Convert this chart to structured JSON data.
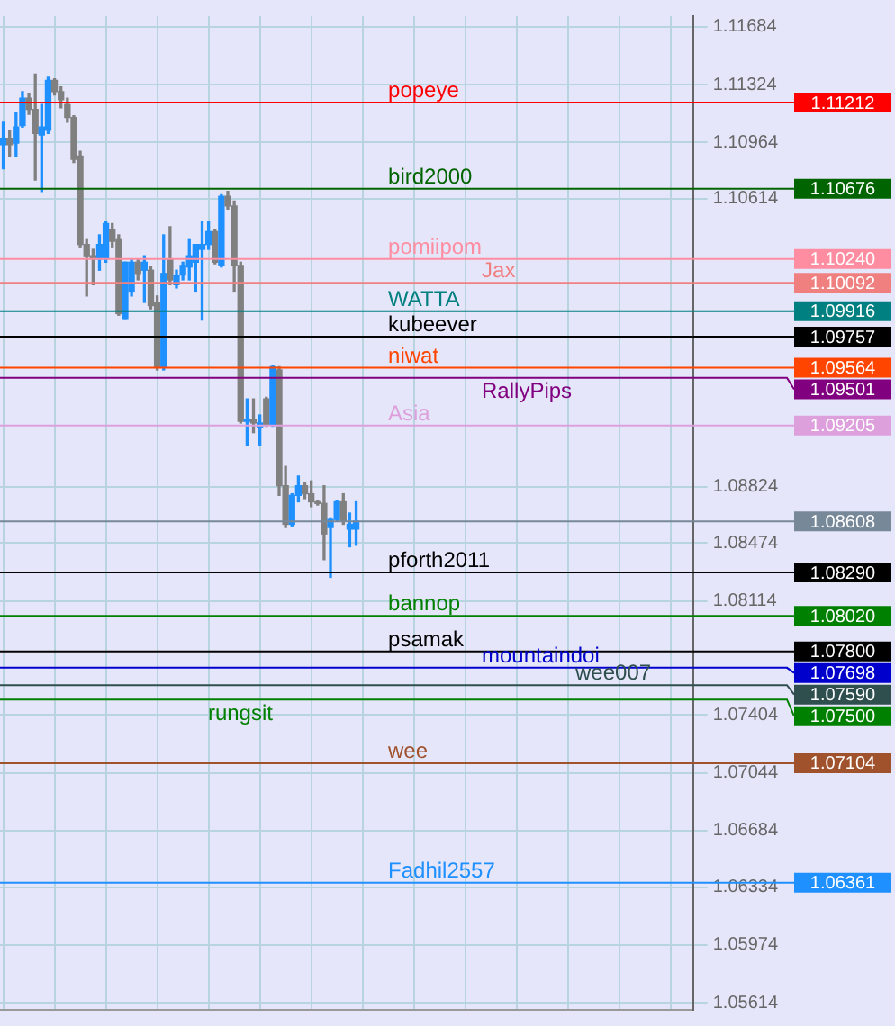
{
  "chart_data": {
    "type": "candlestick",
    "categories": [
      null,
      null,
      null,
      null,
      null,
      null,
      null,
      null,
      null,
      null,
      null,
      null,
      null,
      null,
      null,
      null,
      null,
      null,
      null,
      null,
      null,
      null,
      null,
      null,
      null,
      null,
      null,
      null,
      null,
      null,
      null,
      null,
      null,
      null,
      null,
      null,
      null,
      null,
      null,
      null,
      null,
      null,
      null,
      null,
      null,
      null,
      null,
      null,
      null,
      null,
      null,
      null,
      null,
      null,
      null,
      null,
      null,
      null,
      null,
      null,
      null,
      null,
      null,
      null,
      null,
      null,
      null,
      null,
      null,
      null,
      null,
      null,
      null,
      null,
      null,
      null,
      null,
      null,
      null,
      null,
      null,
      null,
      null,
      null,
      null,
      null,
      null,
      null,
      null,
      null,
      null,
      null,
      null,
      null,
      null,
      null,
      null,
      null,
      null,
      null,
      null,
      null,
      null,
      null,
      null,
      null,
      null,
      null
    ],
    "annotations": [
      "1.11212",
      "1.10676",
      "1.10240",
      "1.10092",
      "1.09916",
      "1.09757",
      "1.09564",
      "1.09501",
      "1.09205",
      "1.08608",
      "1.08290",
      "1.08020",
      "1.07800",
      "1.07698",
      "1.07590",
      "1.07500",
      "1.07104",
      "1.06361"
    ],
    "ohlc": [
      [
        1.1095,
        1.1109,
        1.108,
        1.1099
      ],
      [
        1.1099,
        1.1104,
        1.1088,
        1.1095
      ],
      [
        1.1096,
        1.1115,
        1.1088,
        1.1106
      ],
      [
        1.1107,
        1.1128,
        1.1106,
        1.1124
      ],
      [
        1.1124,
        1.1127,
        1.1114,
        1.1117
      ],
      [
        1.1117,
        1.1139,
        1.1073,
        1.1102
      ],
      [
        1.1101,
        1.112,
        1.1066,
        1.1106
      ],
      [
        1.1104,
        1.1137,
        1.1102,
        1.1135
      ],
      [
        1.1135,
        1.1136,
        1.1126,
        1.1128
      ],
      [
        1.1128,
        1.1131,
        1.1118,
        1.1123
      ],
      [
        1.112,
        1.1124,
        1.1109,
        1.1112
      ],
      [
        1.1112,
        1.1113,
        1.1084,
        1.1086
      ],
      [
        1.1088,
        1.1091,
        1.1031,
        1.1033
      ],
      [
        1.1033,
        1.1036,
        1.1001,
        1.1026
      ],
      [
        1.1026,
        1.103,
        1.1008,
        1.1024
      ],
      [
        1.1024,
        1.1039,
        1.1017,
        1.1033
      ],
      [
        1.1024,
        1.1047,
        1.1022,
        1.1046
      ],
      [
        1.1042,
        1.1046,
        1.1031,
        1.1035
      ],
      [
        1.1036,
        1.1039,
        1.0989,
        1.099
      ],
      [
        1.0987,
        1.1022,
        1.0987,
        1.1022
      ],
      [
        1.1004,
        1.1024,
        1.1001,
        1.1022
      ],
      [
        1.1022,
        1.1024,
        1.1011,
        1.1015
      ],
      [
        1.1017,
        1.1026,
        1.0997,
        1.1022
      ],
      [
        1.1017,
        1.1019,
        1.0993,
        1.0995
      ],
      [
        1.0997,
        1.1001,
        1.0955,
        1.0957
      ],
      [
        1.0957,
        1.1039,
        1.0955,
        1.1015
      ],
      [
        1.1024,
        1.1044,
        1.1008,
        1.1011
      ],
      [
        1.1008,
        1.1017,
        1.1006,
        1.1014
      ],
      [
        1.1014,
        1.1022,
        1.1011,
        1.102
      ],
      [
        1.1019,
        1.1036,
        1.1011,
        1.1026
      ],
      [
        1.1022,
        1.1033,
        1.1004,
        1.1033
      ],
      [
        1.103,
        1.1047,
        1.0986,
        1.1033
      ],
      [
        1.1033,
        1.1047,
        1.103,
        1.1041
      ],
      [
        1.1041,
        1.1042,
        1.1021,
        1.1022
      ],
      [
        1.102,
        1.1064,
        1.1019,
        1.1063
      ],
      [
        1.1063,
        1.1066,
        1.1055,
        1.1057
      ],
      [
        1.1057,
        1.106,
        1.1004,
        1.102
      ],
      [
        1.102,
        1.1022,
        1.0922,
        1.0923
      ],
      [
        1.0923,
        1.0937,
        1.0908,
        1.0924
      ],
      [
        1.0924,
        1.0937,
        1.0916,
        1.0922
      ],
      [
        1.0919,
        1.0927,
        1.0908,
        1.0922
      ],
      [
        1.0937,
        1.0938,
        1.092,
        1.0921
      ],
      [
        1.0921,
        1.0958,
        1.092,
        1.0957
      ],
      [
        1.0955,
        1.0957,
        1.0877,
        1.0883
      ],
      [
        1.0883,
        1.0895,
        1.0857,
        1.0859
      ],
      [
        1.0859,
        1.0878,
        1.0858,
        1.0877
      ],
      [
        1.0877,
        1.0889,
        1.0873,
        1.0883
      ],
      [
        1.0883,
        1.0885,
        1.0875,
        1.0878
      ],
      [
        1.0878,
        1.0886,
        1.087,
        1.0873
      ],
      [
        1.0873,
        1.0874,
        1.0871,
        1.0872
      ],
      [
        1.0872,
        1.0883,
        1.0837,
        1.0853
      ],
      [
        1.0857,
        1.0863,
        1.0826,
        1.0862
      ],
      [
        1.0862,
        1.0874,
        1.0861,
        1.0873
      ],
      [
        1.0873,
        1.0878,
        1.0859,
        1.0861
      ],
      [
        1.0856,
        1.0866,
        1.0845,
        1.0859
      ],
      [
        1.0856,
        1.0873,
        1.0846,
        1.0861
      ],
      null,
      null,
      null,
      null,
      null,
      null,
      null,
      null,
      null,
      null,
      null,
      null,
      null,
      null,
      null,
      null,
      null,
      null,
      null,
      null,
      null,
      null,
      null,
      null,
      null,
      null,
      null,
      null,
      null,
      null,
      null,
      null,
      null,
      null,
      null,
      null,
      null,
      null,
      null,
      null,
      null,
      null,
      null,
      null,
      null,
      null,
      null,
      null,
      null,
      null,
      null,
      null
    ],
    "colors": [
      "#1e90ff",
      "#808080",
      "#1e90ff",
      "#1e90ff",
      "#808080",
      "#808080",
      "#1e90ff",
      "#1e90ff",
      "#808080",
      "#808080",
      "#808080",
      "#808080",
      "#808080",
      "#808080",
      "#808080",
      "#1e90ff",
      "#1e90ff",
      "#808080",
      "#808080",
      "#1e90ff",
      "#1e90ff",
      "#808080",
      "#1e90ff",
      "#808080",
      "#808080",
      "#1e90ff",
      "#808080",
      "#1e90ff",
      "#1e90ff",
      "#1e90ff",
      "#1e90ff",
      "#1e90ff",
      "#1e90ff",
      "#808080",
      "#1e90ff",
      "#808080",
      "#808080",
      "#808080",
      "#1e90ff",
      "#808080",
      "#1e90ff",
      "#808080",
      "#1e90ff",
      "#808080",
      "#808080",
      "#1e90ff",
      "#1e90ff",
      "#808080",
      "#808080",
      "#808080",
      "#808080",
      "#1e90ff",
      "#1e90ff",
      "#808080",
      "#1e90ff",
      "#1e90ff",
      null,
      null,
      null,
      null,
      null,
      null,
      null,
      null,
      null,
      null,
      null,
      null,
      null,
      null,
      null,
      null,
      null,
      null,
      null,
      null,
      null,
      null,
      null,
      null,
      null,
      null,
      null,
      null,
      null,
      null,
      null,
      null,
      null,
      null,
      null,
      null,
      null,
      null,
      null,
      null,
      null,
      null,
      null,
      null,
      null,
      null,
      null,
      null,
      null,
      null,
      null,
      null
    ],
    "ylim": [
      1.0557,
      1.1175
    ],
    "yticks": [
      1.11684,
      1.11324,
      1.10964,
      1.10614,
      1.08824,
      1.08474,
      1.08114,
      1.07404,
      1.07044,
      1.06684,
      1.06334,
      1.05974,
      1.05614
    ],
    "grid": true,
    "tick_labels": "y",
    "ref_lines": [
      {
        "axis": "y",
        "value": 1.11212,
        "label": "popeye",
        "color": "#ff0000"
      },
      {
        "axis": "y",
        "value": 1.10676,
        "label": "bird2000",
        "color": "#006400"
      },
      {
        "axis": "y",
        "value": 1.1024,
        "label": "pomiipom",
        "color": "#ff8da1"
      },
      {
        "axis": "y",
        "value": 1.10092,
        "label": "Jax",
        "color": "#f08080"
      },
      {
        "axis": "y",
        "value": 1.09916,
        "label": "WATTA",
        "color": "#008080"
      },
      {
        "axis": "y",
        "value": 1.09757,
        "label": "kubeever",
        "color": "#000000"
      },
      {
        "axis": "y",
        "value": 1.09564,
        "label": "niwat",
        "color": "#ff4500"
      },
      {
        "axis": "y",
        "value": 1.09501,
        "label": "RallyPips",
        "color": "#800080"
      },
      {
        "axis": "y",
        "value": 1.09205,
        "label": "Asia",
        "color": "#dda0dd"
      },
      {
        "axis": "y",
        "value": 1.08608,
        "label": null,
        "color": "#778899"
      },
      {
        "axis": "y",
        "value": 1.0829,
        "label": "pforth2011",
        "color": "#000000"
      },
      {
        "axis": "y",
        "value": 1.0802,
        "label": "bannop",
        "color": "#008000"
      },
      {
        "axis": "y",
        "value": 1.078,
        "label": "psamak",
        "color": "#000000"
      },
      {
        "axis": "y",
        "value": 1.07698,
        "label": "mountaindoi",
        "color": "#0000cd"
      },
      {
        "axis": "y",
        "value": 1.0759,
        "label": "wee007",
        "color": "#2f4f4f"
      },
      {
        "axis": "y",
        "value": 1.075,
        "label": "rungsit",
        "color": "#008000"
      },
      {
        "axis": "y",
        "value": 1.07104,
        "label": "wee",
        "color": "#a0522d"
      },
      {
        "axis": "y",
        "value": 1.06361,
        "label": "Fadhil2557",
        "color": "#1e90ff"
      }
    ]
  }
}
